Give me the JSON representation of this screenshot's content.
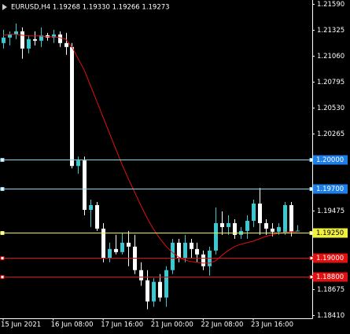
{
  "chart_data": {
    "type": "candlestick",
    "title": "EURUSD,H4  1.19268 1.19330 1.19266 1.19273",
    "background": "#000000",
    "up_color": "#3cc8d0",
    "down_color": "#ffffff",
    "categories": [
      "15 Jun 2021",
      null,
      null,
      null,
      null,
      null,
      null,
      null,
      "16 Jun 08:00",
      null,
      null,
      null,
      null,
      null,
      null,
      null,
      "17 Jun 16:00",
      null,
      null,
      null,
      null,
      null,
      null,
      null,
      "21 Jun 00:00",
      null,
      null,
      null,
      null,
      null,
      null,
      null,
      "22 Jun 08:00",
      null,
      null,
      null,
      null,
      null,
      null,
      null,
      "23 Jun 16:00",
      null,
      null,
      null,
      null,
      null,
      null,
      null
    ],
    "open": [
      1.2119,
      1.21246,
      1.21278,
      1.2131,
      1.21134,
      1.2123,
      1.21214,
      1.2127,
      1.21246,
      1.21278,
      1.2119,
      1.2115,
      1.19934,
      1.1999,
      1.19486,
      1.19534,
      1.19294,
      1.1899,
      1.19086,
      1.19054,
      1.1915,
      1.1911,
      1.1887,
      1.18766,
      1.1855,
      1.1875,
      1.1859,
      1.1887,
      1.1915,
      1.1899,
      1.1915,
      1.19086,
      1.1903,
      1.1891,
      1.1907,
      1.1935,
      1.1931,
      1.1935,
      1.1923,
      1.1927,
      1.19374,
      1.1955,
      1.1935,
      1.19294,
      1.19262,
      1.19246,
      1.19534,
      1.19268
    ],
    "high": [
      1.21326,
      1.2131,
      1.2139,
      1.2135,
      1.2127,
      1.2131,
      1.2135,
      1.21294,
      1.21326,
      1.2131,
      1.21294,
      1.2119,
      1.2003,
      1.2003,
      1.1959,
      1.19566,
      1.1935,
      1.1915,
      1.1923,
      1.19246,
      1.1927,
      1.1923,
      1.1895,
      1.1887,
      1.1879,
      1.1883,
      1.1891,
      1.1919,
      1.1919,
      1.1923,
      1.1919,
      1.1915,
      1.1907,
      1.1911,
      1.1951,
      1.1947,
      1.1943,
      1.1939,
      1.1931,
      1.1943,
      1.1959,
      1.1971,
      1.1939,
      1.1935,
      1.1935,
      1.19566,
      1.19566,
      1.1933
    ],
    "low": [
      1.21134,
      1.21166,
      1.2123,
      1.2103,
      1.21086,
      1.21166,
      1.2115,
      1.21214,
      1.2119,
      1.2115,
      1.2107,
      1.1991,
      1.19854,
      1.1943,
      1.1931,
      1.1927,
      1.1895,
      1.1895,
      1.1903,
      1.1903,
      1.1891,
      1.1883,
      1.1871,
      1.1847,
      1.18494,
      1.1855,
      1.18494,
      1.1883,
      1.1895,
      1.1895,
      1.1899,
      1.1895,
      1.1887,
      1.18814,
      1.1903,
      1.1923,
      1.1923,
      1.1919,
      1.1919,
      1.1919,
      1.1931,
      1.1923,
      1.1923,
      1.19214,
      1.1923,
      1.1923,
      1.19214,
      1.19266
    ],
    "close": [
      1.21246,
      1.21278,
      1.2131,
      1.21134,
      1.2123,
      1.21214,
      1.2127,
      1.21246,
      1.21278,
      1.2119,
      1.2115,
      1.19934,
      1.1999,
      1.19486,
      1.19534,
      1.19294,
      1.1899,
      1.19086,
      1.19054,
      1.1915,
      1.1911,
      1.1887,
      1.18766,
      1.1855,
      1.1875,
      1.1859,
      1.1887,
      1.1915,
      1.1899,
      1.1915,
      1.19086,
      1.1903,
      1.1891,
      1.1907,
      1.1935,
      1.1931,
      1.1935,
      1.1923,
      1.1927,
      1.19374,
      1.1955,
      1.1935,
      1.19294,
      1.19262,
      1.1931,
      1.19534,
      1.19262,
      1.19273
    ],
    "moving_average": {
      "color": "#e01010",
      "values": [
        1.2127,
        1.21278,
        1.21278,
        1.2127,
        1.21262,
        1.21262,
        1.21262,
        1.21254,
        1.21254,
        1.21246,
        1.2123,
        1.2115,
        1.2103,
        1.2091,
        1.2075,
        1.2059,
        1.2043,
        1.2027,
        1.2011,
        1.1995,
        1.19806,
        1.1967,
        1.19534,
        1.19406,
        1.19294,
        1.19198,
        1.19118,
        1.19054,
        1.19006,
        1.18974,
        1.18958,
        1.1895,
        1.18942,
        1.18942,
        1.18966,
        1.19022,
        1.1907,
        1.1911,
        1.19134,
        1.1915,
        1.19166,
        1.1919,
        1.19214,
        1.1923,
        1.19246,
        1.19254,
        1.19262,
        1.19262
      ]
    },
    "levels": [
      {
        "value": 1.2,
        "label": "1.20000",
        "color": "#8ad8ee",
        "box_color": "#1e7ee8",
        "text_color": "#ffffff"
      },
      {
        "value": 1.197,
        "label": "1.19700",
        "color": "#8ad8ee",
        "box_color": "#1e7ee8",
        "text_color": "#ffffff"
      },
      {
        "value": 1.1925,
        "label": "1.19250",
        "color": "#f0f040",
        "box_color": "#f0f040",
        "text_color": "#000000"
      },
      {
        "value": 1.19,
        "label": "1.19000",
        "color": "#e01010",
        "box_color": "#e01010",
        "text_color": "#ffffff"
      },
      {
        "value": 1.188,
        "label": "1.18800",
        "color": "#e01010",
        "box_color": "#e01010",
        "text_color": "#ffffff"
      }
    ],
    "ylim": [
      1.18378,
      1.2163
    ],
    "yticks": [
      {
        "value": 1.2159,
        "label": "1.21590"
      },
      1.21325,
      {
        "value": 1.2106,
        "label": "1.21060"
      },
      1.20795,
      {
        "value": 1.2053,
        "label": "1.20530"
      },
      1.20265,
      1.19475,
      1.18675,
      {
        "value": 1.1841,
        "label": "1.18410"
      }
    ]
  }
}
